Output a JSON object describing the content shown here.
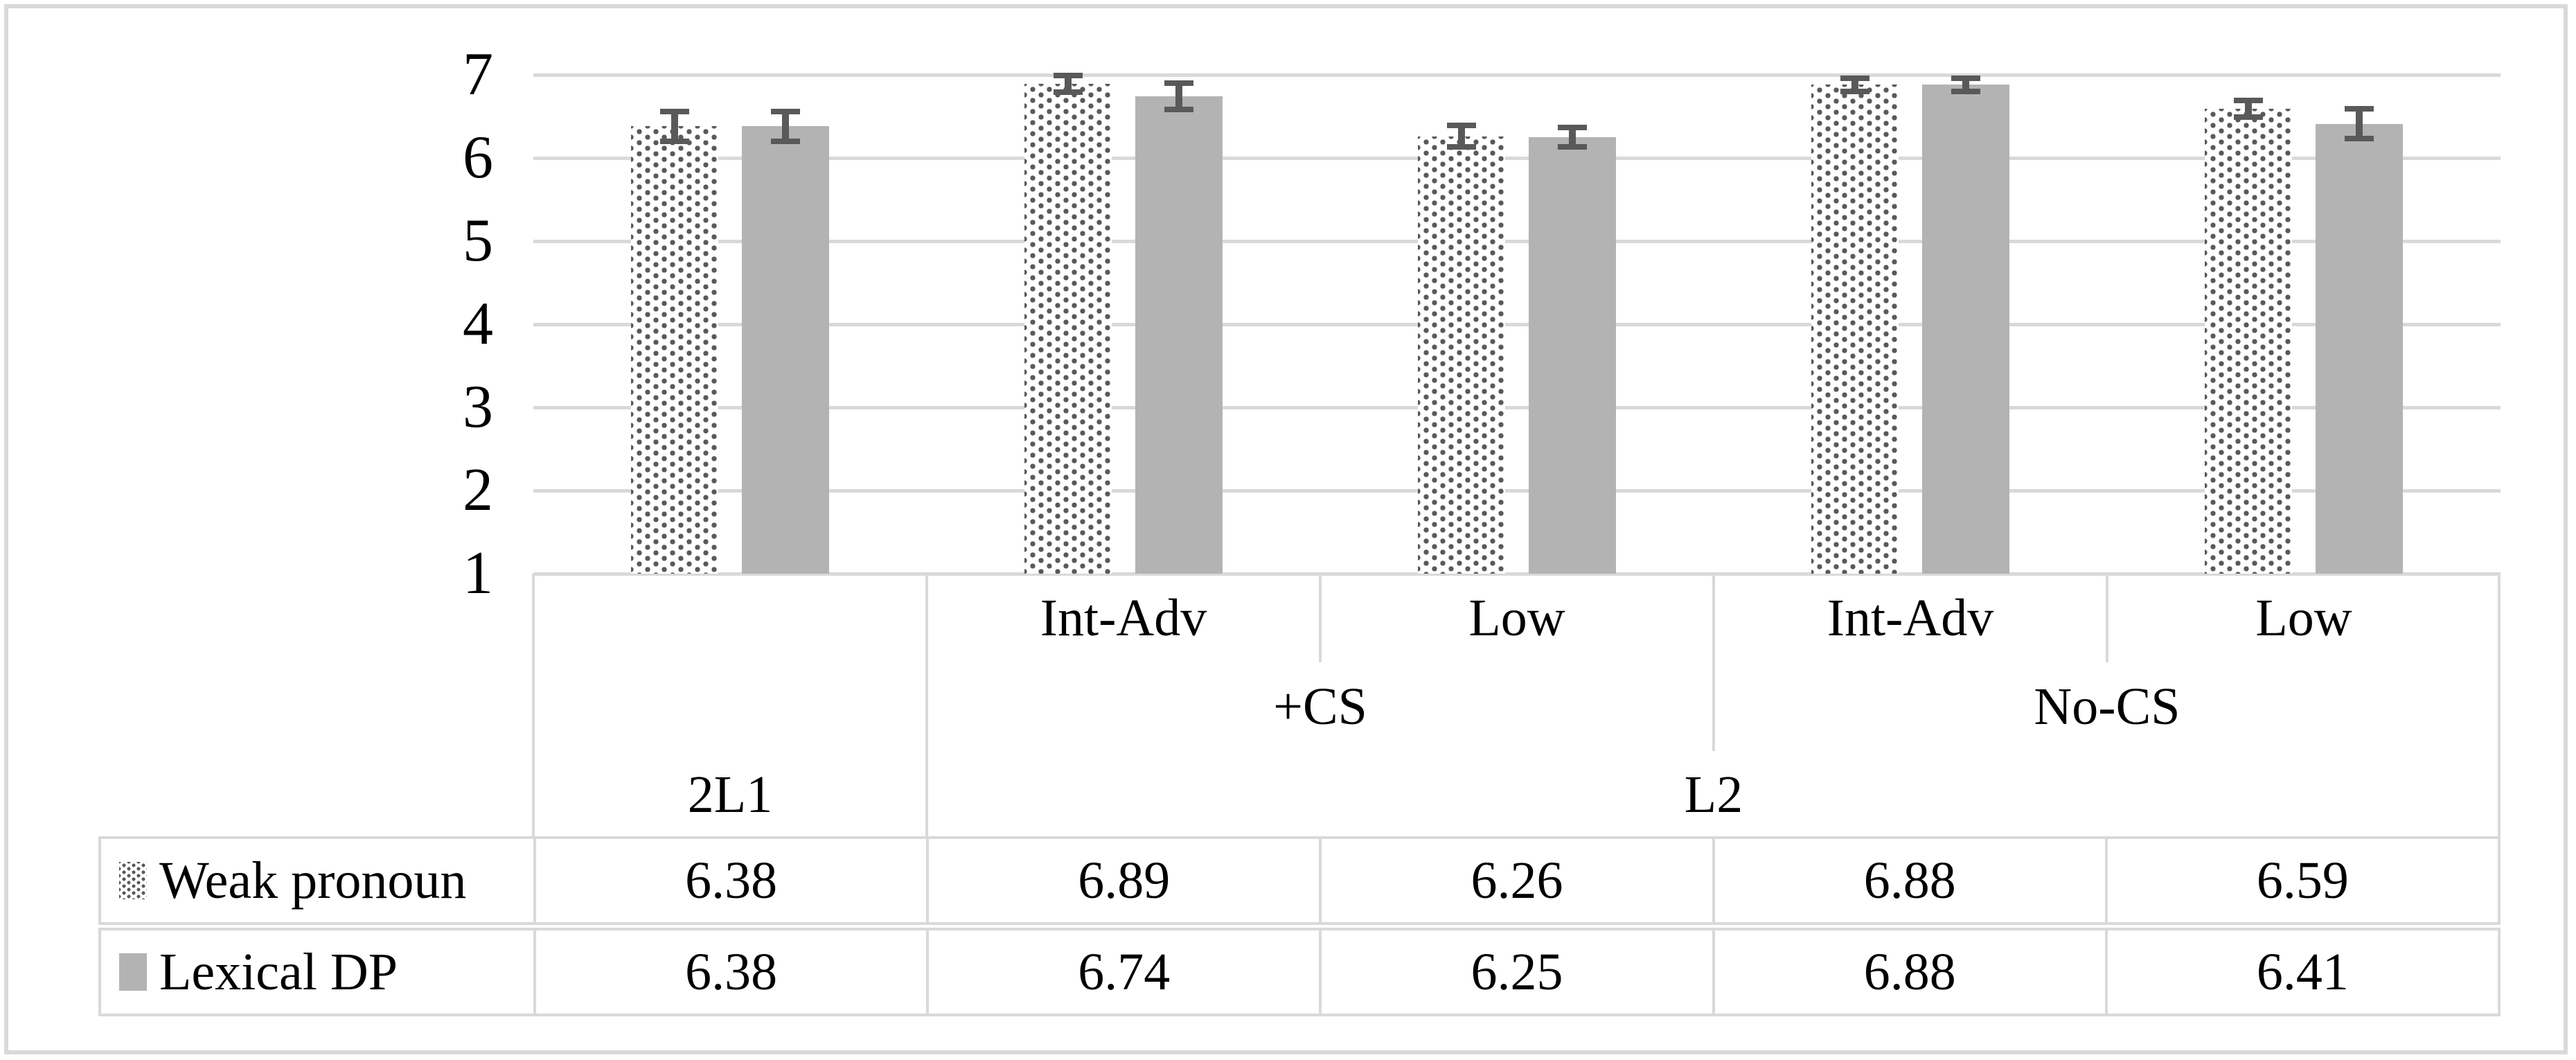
{
  "figure": {
    "background": "#ffffff",
    "border_color": "#d9d9d9"
  },
  "chart_data": {
    "type": "bar",
    "title": "",
    "xlabel": "",
    "ylabel": "",
    "ylim": [
      1,
      7
    ],
    "yticks": [
      1,
      2,
      3,
      4,
      5,
      6,
      7
    ],
    "grid": true,
    "legend_position": "bottom-table",
    "categories": [
      "2L1",
      "L2 +CS Int-Adv",
      "L2 +CS Low",
      "L2 No-CS Int-Adv",
      "L2 No-CS Low"
    ],
    "category_axis_levels": {
      "proficiency": [
        "",
        "Int-Adv",
        "Low",
        "Int-Adv",
        "Low"
      ],
      "condition": [
        "",
        "+CS",
        "+CS",
        "No-CS",
        "No-CS"
      ],
      "group": [
        "2L1",
        "L2",
        "L2",
        "L2",
        "L2"
      ]
    },
    "series": [
      {
        "name": "Weak pronoun",
        "style": "dotted",
        "values": [
          6.38,
          6.89,
          6.26,
          6.88,
          6.59
        ],
        "errors": [
          0.18,
          0.1,
          0.13,
          0.08,
          0.1
        ]
      },
      {
        "name": "Lexical DP",
        "style": "solid",
        "values": [
          6.38,
          6.74,
          6.25,
          6.88,
          6.41
        ],
        "errors": [
          0.18,
          0.16,
          0.12,
          0.08,
          0.18
        ]
      }
    ],
    "colors": {
      "dotted_dot": "#595959",
      "solid_bar": "#b3b3b3",
      "gridline": "#d9d9d9",
      "error_bar": "#595959",
      "text": "#000000"
    }
  },
  "table": {
    "sub_labels": [
      "Int-Adv",
      "Low",
      "Int-Adv",
      "Low"
    ],
    "cs_labels": [
      "+CS",
      "No-CS"
    ],
    "group_labels": [
      "2L1",
      "L2"
    ],
    "rows": [
      {
        "name": "Weak pronoun",
        "values": [
          "6.38",
          "6.89",
          "6.26",
          "6.88",
          "6.59"
        ]
      },
      {
        "name": "Lexical DP",
        "values": [
          "6.38",
          "6.74",
          "6.25",
          "6.88",
          "6.41"
        ]
      }
    ]
  }
}
